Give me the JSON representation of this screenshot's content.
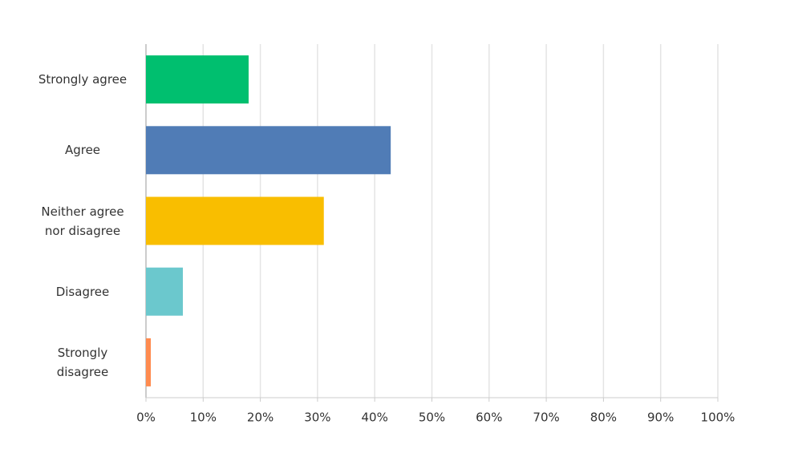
{
  "chart_data": {
    "type": "bar",
    "orientation": "horizontal",
    "categories": [
      "Strongly agree",
      "Agree",
      "Neither agree\nnor disagree",
      "Disagree",
      "Strongly\ndisagree"
    ],
    "values": [
      17.95,
      42.8,
      31.1,
      6.45,
      0.85
    ],
    "colors": [
      "#00bf6f",
      "#507cb6",
      "#f9be00",
      "#6bc8cd",
      "#ff8b4f"
    ],
    "xlim": [
      0,
      100
    ],
    "xticks": [
      {
        "value": 0,
        "label": "0%"
      },
      {
        "value": 10,
        "label": "10%"
      },
      {
        "value": 20,
        "label": "20%"
      },
      {
        "value": 30,
        "label": "30%"
      },
      {
        "value": 40,
        "label": "40%"
      },
      {
        "value": 50,
        "label": "50%"
      },
      {
        "value": 60,
        "label": "60%"
      },
      {
        "value": 70,
        "label": "70%"
      },
      {
        "value": 80,
        "label": "80%"
      },
      {
        "value": 90,
        "label": "90%"
      },
      {
        "value": 100,
        "label": "100%"
      }
    ],
    "grid": true
  }
}
